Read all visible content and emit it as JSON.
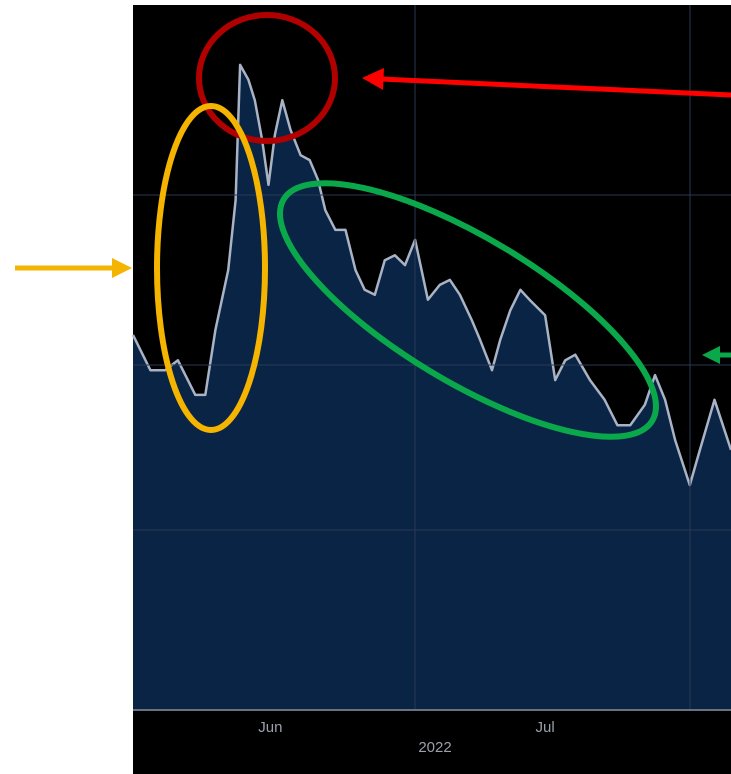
{
  "chart_data": {
    "type": "area",
    "line_color": "#a9b3c4",
    "fill_color": "#0a2446",
    "x": [
      -0.8,
      1.1,
      2.7,
      4.1,
      6.0,
      7.1,
      8.2,
      9.6,
      10.4,
      10.9,
      11.8,
      12.5,
      13.3,
      14.0,
      14.7,
      15.5,
      16.4,
      17.5,
      18.5,
      19.4,
      20.2,
      21.3,
      22.4,
      23.5,
      24.5,
      25.6,
      26.7,
      27.8,
      28.9,
      30.0,
      31.4,
      32.7,
      33.8,
      34.9,
      36.2,
      37.1,
      38.4,
      39.3,
      40.4,
      41.5,
      42.5,
      44.2,
      45.3,
      46.4,
      47.5,
      49.1,
      50.7,
      52.1,
      53.5,
      55.1,
      56.2,
      57.3,
      58.4,
      60.0,
      61.1,
      62.7,
      64.5
    ],
    "values": [
      53.2,
      48.2,
      48.2,
      49.6,
      44.7,
      44.7,
      53.9,
      62.4,
      72.3,
      91.5,
      89.4,
      86.5,
      80.9,
      74.5,
      81.6,
      86.5,
      82.3,
      78.7,
      78.0,
      75.2,
      70.9,
      68.1,
      68.1,
      62.4,
      59.6,
      58.9,
      63.8,
      64.5,
      63.1,
      66.7,
      58.2,
      60.3,
      61.0,
      58.9,
      55.3,
      52.5,
      48.2,
      52.5,
      56.7,
      59.6,
      58.2,
      56.0,
      46.8,
      49.6,
      50.4,
      46.8,
      44.0,
      40.4,
      40.4,
      43.3,
      47.5,
      44.0,
      38.3,
      31.9,
      36.9,
      44.0,
      36.9
    ],
    "xlim": [
      -0.8,
      64.5
    ],
    "ylim": [
      0,
      100
    ],
    "xticks": [
      {
        "value": 14.2,
        "label": "Jun"
      },
      {
        "value": 44.2,
        "label": "Jul"
      }
    ],
    "xlabel": "2022"
  }
}
